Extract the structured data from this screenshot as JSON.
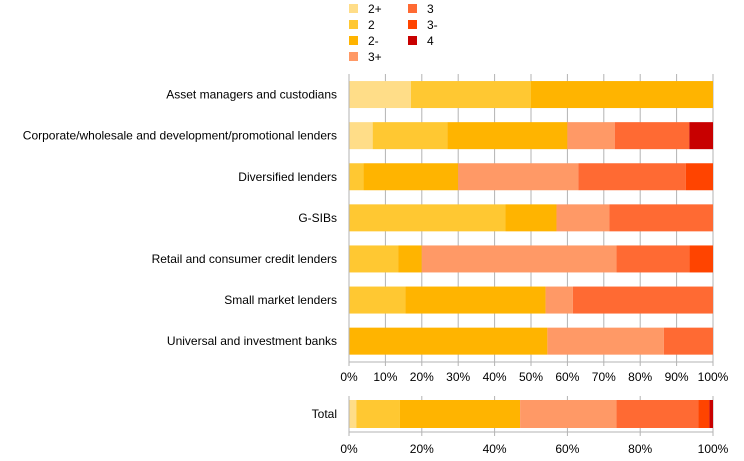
{
  "chart_data": [
    {
      "type": "bar",
      "orientation": "horizontal",
      "stacked": true,
      "normalized": true,
      "categories": [
        "Asset managers and custodians",
        "Corporate/wholesale and development/promotional lenders",
        "Diversified lenders",
        "G-SIBs",
        "Retail and consumer credit lenders",
        "Small market lenders",
        "Universal and investment banks"
      ],
      "series": [
        {
          "name": "2+",
          "color": "#FFDD88",
          "values": [
            17,
            6.5,
            0,
            0,
            0,
            0,
            0
          ]
        },
        {
          "name": "2",
          "color": "#FFC832",
          "values": [
            33,
            20.5,
            4,
            43,
            13.5,
            15.5,
            0
          ]
        },
        {
          "name": "2-",
          "color": "#FFB400",
          "values": [
            50,
            33,
            26,
            14,
            6.5,
            38.5,
            54.5
          ]
        },
        {
          "name": "3+",
          "color": "#FF9966",
          "values": [
            0,
            13,
            33,
            14.5,
            53.5,
            7.5,
            32
          ]
        },
        {
          "name": "3",
          "color": "#FF6A33",
          "values": [
            0,
            20.5,
            29.5,
            28.5,
            20,
            38.5,
            13.5
          ]
        },
        {
          "name": "3-",
          "color": "#FF4400",
          "values": [
            0,
            0,
            7.5,
            0,
            6.5,
            0,
            0
          ]
        },
        {
          "name": "4",
          "color": "#C80000",
          "values": [
            0,
            6.5,
            0,
            0,
            0,
            0,
            0
          ]
        }
      ],
      "xlim": [
        0,
        100
      ],
      "xticks": [
        "0%",
        "10%",
        "20%",
        "30%",
        "40%",
        "50%",
        "60%",
        "70%",
        "80%",
        "90%",
        "100%"
      ],
      "grid": true,
      "legend_position": "top"
    },
    {
      "type": "bar",
      "orientation": "horizontal",
      "stacked": true,
      "normalized": true,
      "categories": [
        "Total"
      ],
      "series": [
        {
          "name": "2+",
          "values": [
            2
          ]
        },
        {
          "name": "2",
          "values": [
            12
          ]
        },
        {
          "name": "2-",
          "values": [
            33
          ]
        },
        {
          "name": "3+",
          "values": [
            26.5
          ]
        },
        {
          "name": "3",
          "values": [
            22.5
          ]
        },
        {
          "name": "3-",
          "values": [
            3
          ]
        },
        {
          "name": "4",
          "values": [
            1
          ]
        }
      ],
      "xlim": [
        0,
        100
      ],
      "xticks": [
        "0%",
        "20%",
        "40%",
        "60%",
        "80%",
        "100%"
      ],
      "grid": true
    }
  ]
}
